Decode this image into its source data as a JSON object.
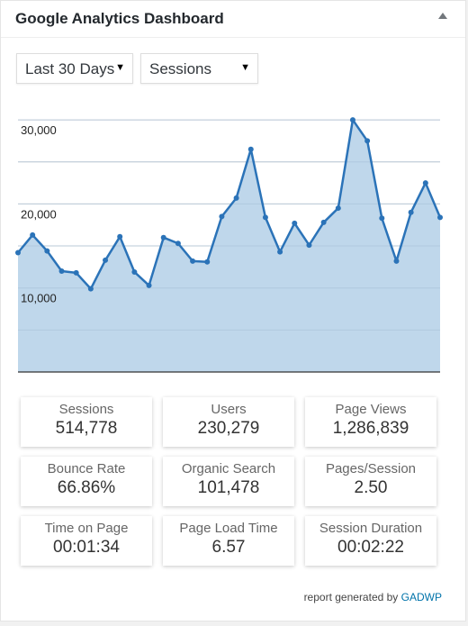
{
  "widget": {
    "title": "Google Analytics Dashboard",
    "toggle_icon": "triangle-up-icon"
  },
  "controls": {
    "range": {
      "value": "Last 30 Days",
      "options_visible": [
        "Last 30 Days"
      ]
    },
    "metric": {
      "value": "Sessions",
      "options_visible": [
        "Sessions"
      ]
    }
  },
  "chart_data": {
    "type": "area",
    "title": "",
    "xlabel": "",
    "ylabel": "",
    "ylim": [
      0,
      30000
    ],
    "yticks": [
      10000,
      20000,
      30000
    ],
    "ytick_labels": [
      "10,000",
      "20,000",
      "30,000"
    ],
    "grid": "on",
    "legend": "none",
    "series": [
      {
        "values": [
          14200,
          16300,
          14400,
          12000,
          11800,
          9900,
          13300,
          16100,
          11900,
          10300,
          16000,
          15300,
          13200,
          13100,
          18500,
          20700,
          26500,
          18400,
          14300,
          17700,
          15100,
          17800,
          19500,
          30000,
          27500,
          18300,
          13200,
          19000,
          22500,
          18400
        ]
      }
    ],
    "colors": {
      "line": "#2b73b8",
      "fill": "#bcd5ea",
      "grid": "#d4d4d4",
      "baseline": "#333333"
    }
  },
  "stats": [
    {
      "label": "Sessions",
      "value": "514,778"
    },
    {
      "label": "Users",
      "value": "230,279"
    },
    {
      "label": "Page Views",
      "value": "1,286,839"
    },
    {
      "label": "Bounce Rate",
      "value": "66.86%"
    },
    {
      "label": "Organic Search",
      "value": "101,478"
    },
    {
      "label": "Pages/Session",
      "value": "2.50"
    },
    {
      "label": "Time on Page",
      "value": "00:01:34"
    },
    {
      "label": "Page Load Time",
      "value": "6.57"
    },
    {
      "label": "Session Duration",
      "value": "00:02:22"
    }
  ],
  "footer": {
    "prefix": "report generated by",
    "link": "GADWP"
  }
}
